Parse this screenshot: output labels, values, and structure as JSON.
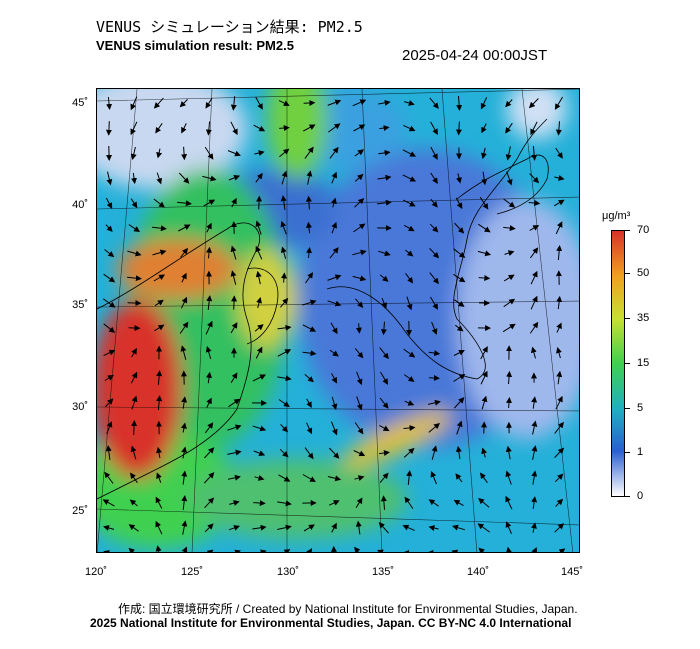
{
  "title_jp": "VENUS シミュレーション結果: PM2.5",
  "title_en": "VENUS simulation result: PM2.5",
  "timestamp": "2025-04-24 00:00JST",
  "lat_labels": [
    "45˚",
    "40˚",
    "35˚",
    "30˚",
    "25˚"
  ],
  "lon_labels": [
    "120˚",
    "125˚",
    "130˚",
    "135˚",
    "140˚",
    "145˚"
  ],
  "colorbar": {
    "unit": "μg/m³",
    "ticks": [
      "70",
      "50",
      "35",
      "15",
      "5",
      "1",
      "0"
    ],
    "colors": [
      "#d8322a",
      "#f0a020",
      "#c8e030",
      "#40d050",
      "#20b0c0",
      "#2a5fd0",
      "#ffffff"
    ]
  },
  "credits": {
    "line1": "作成: 国立環境研究所 / Created by National Institute for Environmental Studies, Japan.",
    "line2": "2025 National Institute for Environmental Studies, Japan. CC BY-NC 4.0 International"
  }
}
